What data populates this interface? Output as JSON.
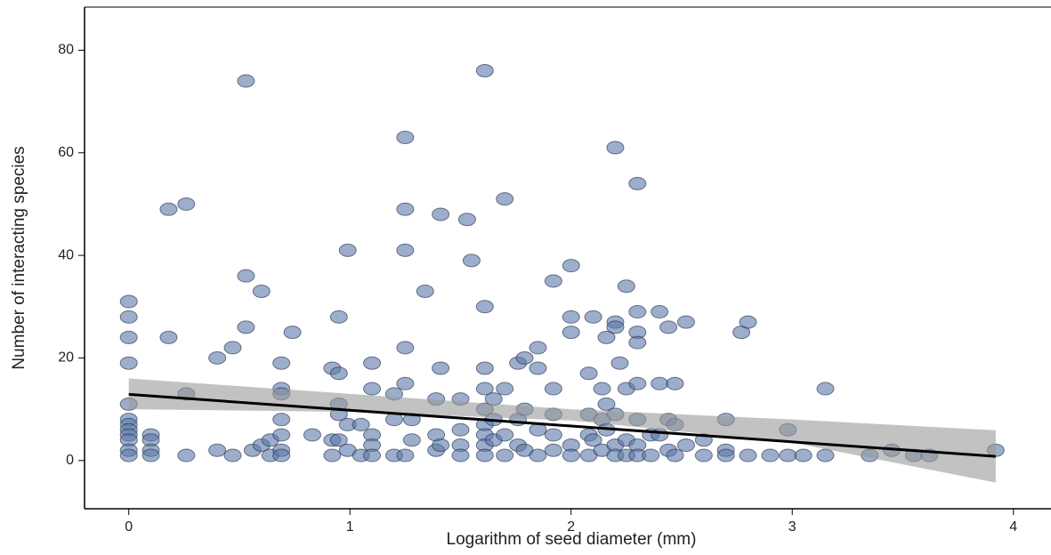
{
  "chart_data": {
    "type": "scatter",
    "x_label": "Logarithm of seed diameter (mm)",
    "y_label": "Number of interacting species",
    "xlim": [
      -0.2,
      4.17
    ],
    "ylim": [
      -9.4,
      88.4
    ],
    "xticks": [
      0,
      1,
      2,
      3,
      4
    ],
    "yticks": [
      0,
      20,
      40,
      60,
      80
    ],
    "color": "#5a78a8",
    "x": [
      0,
      0,
      0,
      0,
      0,
      0,
      0,
      0,
      0,
      0,
      0,
      0,
      0.1,
      0.1,
      0.1,
      0.1,
      0.18,
      0.18,
      0.26,
      0.26,
      0.26,
      0.4,
      0.4,
      0.47,
      0.47,
      0.53,
      0.53,
      0.53,
      0.56,
      0.6,
      0.6,
      0.64,
      0.64,
      0.69,
      0.69,
      0.69,
      0.69,
      0.69,
      0.69,
      0.69,
      0.74,
      0.83,
      0.92,
      0.92,
      0.92,
      0.95,
      0.95,
      0.95,
      0.95,
      0.95,
      0.99,
      0.99,
      0.99,
      1.05,
      1.05,
      1.1,
      1.1,
      1.1,
      1.1,
      1.1,
      1.2,
      1.2,
      1.2,
      1.25,
      1.25,
      1.25,
      1.25,
      1.25,
      1.25,
      1.28,
      1.28,
      1.34,
      1.39,
      1.39,
      1.39,
      1.41,
      1.41,
      1.41,
      1.5,
      1.5,
      1.5,
      1.5,
      1.53,
      1.55,
      1.61,
      1.61,
      1.61,
      1.61,
      1.61,
      1.61,
      1.61,
      1.61,
      1.61,
      1.65,
      1.65,
      1.65,
      1.7,
      1.7,
      1.7,
      1.7,
      1.76,
      1.76,
      1.76,
      1.79,
      1.79,
      1.79,
      1.85,
      1.85,
      1.85,
      1.85,
      1.92,
      1.92,
      1.92,
      1.92,
      1.92,
      2.0,
      2.0,
      2.0,
      2.0,
      2.0,
      2.08,
      2.08,
      2.08,
      2.08,
      2.1,
      2.1,
      2.14,
      2.14,
      2.14,
      2.16,
      2.16,
      2.16,
      2.2,
      2.2,
      2.2,
      2.2,
      2.2,
      2.2,
      2.22,
      2.25,
      2.25,
      2.25,
      2.25,
      2.3,
      2.3,
      2.3,
      2.3,
      2.3,
      2.3,
      2.3,
      2.3,
      2.36,
      2.36,
      2.4,
      2.4,
      2.4,
      2.44,
      2.44,
      2.44,
      2.47,
      2.47,
      2.47,
      2.52,
      2.52,
      2.6,
      2.6,
      2.7,
      2.7,
      2.7,
      2.77,
      2.8,
      2.8,
      2.9,
      2.98,
      2.98,
      3.05,
      3.15,
      3.15,
      3.35,
      3.45,
      3.55,
      3.62,
      3.92
    ],
    "values": [
      31,
      28,
      24,
      19,
      11,
      8,
      7,
      6,
      5,
      4,
      2,
      1,
      5,
      4,
      2,
      1,
      49,
      24,
      50,
      13,
      1,
      20,
      2,
      22,
      1,
      74,
      36,
      26,
      2,
      33,
      3,
      4,
      1,
      19,
      14,
      13,
      8,
      5,
      2,
      1,
      25,
      5,
      18,
      4,
      1,
      28,
      17,
      11,
      9,
      4,
      41,
      7,
      2,
      7,
      1,
      19,
      14,
      5,
      3,
      1,
      13,
      8,
      1,
      63,
      49,
      41,
      22,
      15,
      1,
      8,
      4,
      33,
      12,
      5,
      2,
      48,
      18,
      3,
      12,
      6,
      3,
      1,
      47,
      39,
      76,
      30,
      18,
      14,
      10,
      7,
      5,
      3,
      1,
      12,
      8,
      4,
      51,
      14,
      5,
      1,
      19,
      8,
      3,
      20,
      10,
      2,
      22,
      18,
      6,
      1,
      35,
      14,
      9,
      5,
      2,
      38,
      28,
      25,
      3,
      1,
      17,
      9,
      5,
      1,
      28,
      4,
      14,
      8,
      2,
      24,
      11,
      6,
      61,
      27,
      26,
      9,
      3,
      1,
      19,
      34,
      14,
      4,
      1,
      54,
      29,
      25,
      23,
      15,
      8,
      3,
      1,
      5,
      1,
      29,
      15,
      5,
      26,
      8,
      2,
      15,
      7,
      1,
      27,
      3,
      4,
      1,
      8,
      2,
      1,
      25,
      27,
      1,
      1,
      6,
      1,
      1,
      14,
      1,
      1,
      2,
      1,
      1,
      2
    ],
    "fit": {
      "color": "#000000",
      "x": [
        0,
        3.92
      ],
      "values": [
        12.9,
        0.8
      ]
    },
    "band": {
      "color": "#999999",
      "x": [
        0,
        1,
        2,
        3,
        3.92
      ],
      "lower": [
        10,
        9.5,
        7.8,
        3.5,
        -4.3
      ],
      "upper": [
        16,
        13,
        10,
        8,
        5.9
      ]
    }
  }
}
